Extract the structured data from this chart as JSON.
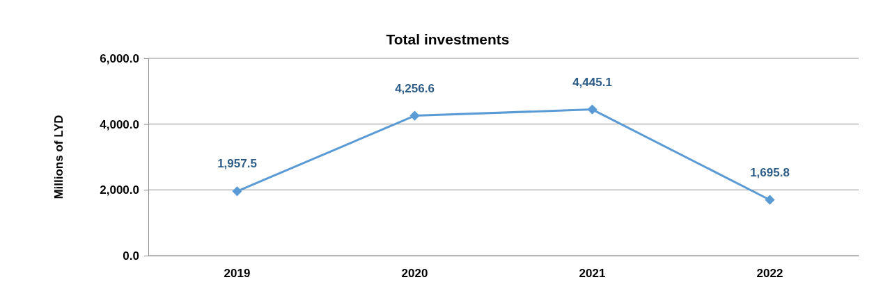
{
  "chart_data": {
    "type": "line",
    "title": "Total investments",
    "ylabel": "Millions of LYD",
    "categories": [
      "2019",
      "2020",
      "2021",
      "2022"
    ],
    "series": [
      {
        "color": "#5b9bd5",
        "values": [
          1957.5,
          4256.6,
          4445.1,
          1695.8
        ],
        "value_labels": [
          "1,957.5",
          "4,256.6",
          "4,445.1",
          "1,695.8"
        ]
      }
    ],
    "ylim": [
      0,
      6000
    ],
    "yticks": [
      {
        "value": 0,
        "label": "0.0"
      },
      {
        "value": 2000,
        "label": "2,000.0"
      },
      {
        "value": 4000,
        "label": "4,000.0"
      },
      {
        "value": 6000,
        "label": "6,000.0"
      }
    ],
    "grid": "y",
    "marker": "diamond",
    "line_style": "solid"
  }
}
